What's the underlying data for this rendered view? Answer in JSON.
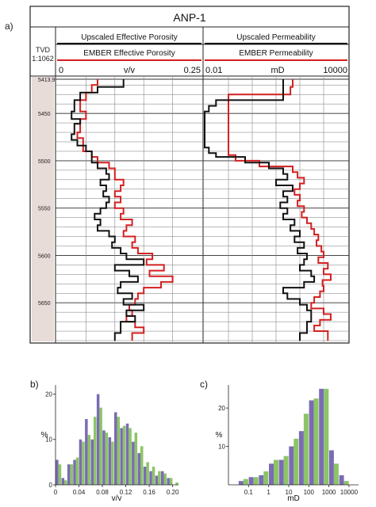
{
  "panel_labels": {
    "a": "a)",
    "b": "b)",
    "c": "c)"
  },
  "colors": {
    "upscaled": "#111111",
    "ember": "#d42020",
    "hist_purple": "#7b6bb4",
    "hist_green": "#8cc466",
    "depth_track": "#e8dcd8"
  },
  "chart_data": [
    {
      "type": "line",
      "panel": "a",
      "title": "ANP-1",
      "depth_header": "TVD",
      "depth_scale": "1:1062",
      "depth_ticks": [
        "5413.9",
        "5450",
        "5500",
        "5550",
        "5600",
        "5650"
      ],
      "depth_values": [
        5413.9,
        5450,
        5500,
        5550,
        5600,
        5650
      ],
      "depth_range": [
        5413.9,
        5690
      ],
      "tracks": [
        {
          "headers": [
            "Upscaled Effective Porosity",
            "EMBER Effective Porosity"
          ],
          "xlabel": "v/v",
          "scale_min_label": "0",
          "scale_max_label": "0.25",
          "xlim": [
            0,
            0.25
          ],
          "log_scale": false,
          "series": [
            {
              "legend": "Upscaled Effective Porosity",
              "color": "#111111",
              "depth": [
                5413.9,
                5422,
                5428,
                5436,
                5442,
                5448,
                5452,
                5456,
                5461,
                5466,
                5472,
                5478,
                5484,
                5490,
                5496,
                5502,
                5508,
                5514,
                5520,
                5526,
                5532,
                5538,
                5544,
                5550,
                5556,
                5562,
                5568,
                5574,
                5580,
                5586,
                5592,
                5598,
                5604,
                5610,
                5616,
                5622,
                5628,
                5634,
                5640,
                5646,
                5652,
                5658,
                5664,
                5670,
                5676,
                5682,
                5690
              ],
              "values": [
                0.115,
                0.07,
                0.04,
                0.03,
                0.03,
                0.025,
                0.025,
                0.04,
                0.03,
                0.03,
                0.025,
                0.035,
                0.05,
                0.06,
                0.06,
                0.07,
                0.085,
                0.09,
                0.075,
                0.085,
                0.08,
                0.09,
                0.085,
                0.075,
                0.065,
                0.075,
                0.07,
                0.09,
                0.1,
                0.095,
                0.11,
                0.12,
                0.15,
                0.1,
                0.125,
                0.14,
                0.11,
                0.105,
                0.13,
                0.115,
                0.15,
                0.12,
                0.135,
                0.11,
                0.11,
                0.1,
                0.1
              ]
            },
            {
              "legend": "EMBER Effective Porosity",
              "color": "#d42020",
              "depth": [
                5413.9,
                5420,
                5428,
                5436,
                5442,
                5448,
                5456,
                5462,
                5470,
                5476,
                5484,
                5490,
                5496,
                5502,
                5508,
                5514,
                5520,
                5526,
                5532,
                5538,
                5544,
                5550,
                5556,
                5562,
                5568,
                5574,
                5580,
                5586,
                5592,
                5598,
                5604,
                5610,
                5616,
                5622,
                5628,
                5634,
                5640,
                5646,
                5652,
                5658,
                5664,
                5670,
                5676,
                5682,
                5690
              ],
              "values": [
                0.07,
                0.06,
                0.05,
                0.04,
                0.04,
                0.05,
                0.04,
                0.04,
                0.035,
                0.045,
                0.045,
                0.06,
                0.07,
                0.09,
                0.1,
                0.1,
                0.115,
                0.11,
                0.1,
                0.11,
                0.1,
                0.115,
                0.11,
                0.13,
                0.12,
                0.115,
                0.135,
                0.13,
                0.14,
                0.165,
                0.155,
                0.185,
                0.16,
                0.2,
                0.18,
                0.15,
                0.14,
                0.135,
                0.125,
                0.13,
                0.12,
                0.135,
                0.15,
                0.13,
                0.13
              ]
            }
          ]
        },
        {
          "headers": [
            "Upscaled Permeability",
            "EMBER Permeability"
          ],
          "xlabel": "mD",
          "scale_min_label": "0.01",
          "scale_max_label": "10000",
          "xlim": [
            0.01,
            10000
          ],
          "log_scale": true,
          "series": [
            {
              "legend": "Upscaled Permeability",
              "color": "#111111",
              "depth": [
                5413.9,
                5425,
                5436,
                5442,
                5448,
                5455,
                5462,
                5470,
                5478,
                5486,
                5492,
                5496,
                5502,
                5508,
                5514,
                5520,
                5526,
                5532,
                5538,
                5544,
                5550,
                5556,
                5562,
                5568,
                5574,
                5580,
                5586,
                5592,
                5598,
                5604,
                5610,
                5616,
                5622,
                5628,
                5634,
                5640,
                5646,
                5652,
                5658,
                5664,
                5670,
                5676,
                5682,
                5690
              ],
              "values": [
                20,
                20,
                0.03,
                0.015,
                0.01,
                0.01,
                0.01,
                0.01,
                0.01,
                0.015,
                0.03,
                0.5,
                5,
                20,
                30,
                10,
                50,
                20,
                30,
                15,
                30,
                20,
                60,
                40,
                100,
                60,
                150,
                80,
                200,
                150,
                100,
                300,
                400,
                150,
                20,
                30,
                100,
                200,
                300,
                300,
                200,
                200,
                100,
                100
              ]
            },
            {
              "legend": "EMBER Permeability",
              "color": "#d42020",
              "depth": [
                5413.9,
                5422,
                5430,
                5440,
                5452,
                5464,
                5476,
                5486,
                5494,
                5500,
                5506,
                5512,
                5518,
                5524,
                5530,
                5536,
                5542,
                5548,
                5554,
                5560,
                5566,
                5572,
                5578,
                5584,
                5590,
                5596,
                5602,
                5608,
                5614,
                5620,
                5626,
                5632,
                5638,
                5644,
                5650,
                5656,
                5662,
                5668,
                5674,
                5680,
                5690
              ],
              "values": [
                50,
                40,
                0.1,
                0.1,
                0.1,
                0.1,
                0.1,
                0.1,
                0.2,
                2,
                50,
                80,
                150,
                100,
                60,
                100,
                80,
                150,
                120,
                200,
                300,
                400,
                600,
                500,
                800,
                1000,
                600,
                1500,
                1000,
                2000,
                900,
                1000,
                700,
                400,
                300,
                1000,
                2000,
                700,
                400,
                1500,
                1000
              ]
            }
          ]
        }
      ]
    },
    {
      "type": "bar",
      "panel": "b",
      "xlabel": "v/v",
      "ylabel": "%",
      "x_tick_labels": [
        "0",
        "0.04",
        "0.08",
        "0.12",
        "0.16",
        "0.20"
      ],
      "xlim": [
        0,
        0.21
      ],
      "y_tick_labels": [
        "20",
        "10",
        "0"
      ],
      "ylim": [
        0,
        22
      ],
      "bin_width": 0.01,
      "x": [
        0.005,
        0.015,
        0.025,
        0.035,
        0.045,
        0.055,
        0.065,
        0.075,
        0.085,
        0.095,
        0.105,
        0.115,
        0.125,
        0.135,
        0.145,
        0.155,
        0.165,
        0.175,
        0.185,
        0.195,
        0.205
      ],
      "series": [
        {
          "color": "#7b6bb4",
          "values": [
            5.5,
            1.5,
            4.5,
            5.5,
            10,
            14.5,
            10,
            20,
            12,
            10.5,
            16,
            12.5,
            13.5,
            9.5,
            7,
            4,
            3,
            2,
            3,
            1.5,
            0
          ]
        },
        {
          "color": "#8cc466",
          "values": [
            4.5,
            1,
            4.5,
            6,
            9.5,
            11,
            15,
            17,
            11.5,
            9.5,
            15,
            13,
            12.5,
            11.5,
            8.5,
            5,
            4,
            3,
            2.5,
            1.5,
            0.5
          ]
        }
      ]
    },
    {
      "type": "bar",
      "panel": "c",
      "xlabel": "mD",
      "ylabel": "%",
      "x_tick_labels": [
        "0.1",
        "1",
        "10",
        "100",
        "1000",
        "10000"
      ],
      "log_scale": true,
      "xlim": [
        0.01,
        30000
      ],
      "y_tick_labels": [
        "20",
        "10"
      ],
      "ylim": [
        0,
        26
      ],
      "x": [
        0.056,
        0.178,
        0.56,
        1.78,
        5.6,
        17.8,
        56,
        178,
        562,
        1778,
        5623
      ],
      "series": [
        {
          "color": "#7b6bb4",
          "values": [
            1,
            2,
            2.5,
            5.5,
            6.5,
            10,
            14,
            22,
            25,
            9,
            2.5
          ]
        },
        {
          "color": "#8cc466",
          "values": [
            1.5,
            2,
            3.5,
            6.5,
            7.5,
            12,
            18.5,
            22.5,
            25,
            5.5,
            1
          ]
        }
      ]
    }
  ]
}
